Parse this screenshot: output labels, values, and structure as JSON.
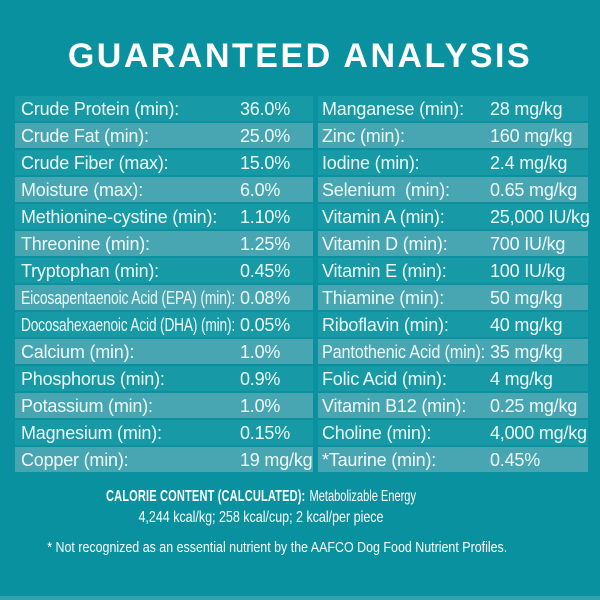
{
  "title": "GUARANTEED ANALYSIS",
  "colors": {
    "background": "#0a91a0",
    "row_dark": "#1799a6",
    "row_light": "#48a6b2",
    "text": "#eefafb",
    "title": "#ffffff",
    "bottom_edge": "#34a1ad"
  },
  "table": {
    "left_column": [
      {
        "label": "Crude Protein (min):",
        "value": "36.0%"
      },
      {
        "label": "Crude Fat (min):",
        "value": "25.0%"
      },
      {
        "label": "Crude Fiber (max):",
        "value": "15.0%"
      },
      {
        "label": "Moisture (max):",
        "value": "6.0%"
      },
      {
        "label": "Methionine-cystine (min):",
        "value": "1.10%"
      },
      {
        "label": "Threonine (min):",
        "value": "1.25%"
      },
      {
        "label": "Tryptophan (min):",
        "value": "0.45%"
      },
      {
        "label": "Eicosapentaenoic Acid (EPA) (min):",
        "value": "0.08%"
      },
      {
        "label": "Docosahexaenoic Acid (DHA) (min):",
        "value": "0.05%"
      },
      {
        "label": "Calcium (min):",
        "value": "1.0%"
      },
      {
        "label": "Phosphorus (min):",
        "value": "0.9%"
      },
      {
        "label": "Potassium (min):",
        "value": "1.0%"
      },
      {
        "label": "Magnesium (min):",
        "value": "0.15%"
      },
      {
        "label": "Copper (min):",
        "value": "19 mg/kg"
      }
    ],
    "right_column": [
      {
        "label": "Manganese (min):",
        "value": "28 mg/kg"
      },
      {
        "label": "Zinc (min):",
        "value": "160 mg/kg"
      },
      {
        "label": "Iodine (min):",
        "value": "2.4 mg/kg"
      },
      {
        "label": "Selenium  (min):",
        "value": "0.65 mg/kg"
      },
      {
        "label": "Vitamin A (min):",
        "value": "25,000 IU/kg"
      },
      {
        "label": "Vitamin D (min):",
        "value": "700 IU/kg"
      },
      {
        "label": "Vitamin E (min):",
        "value": "100 IU/kg"
      },
      {
        "label": "Thiamine (min):",
        "value": "50 mg/kg"
      },
      {
        "label": "Riboflavin (min):",
        "value": "40 mg/kg"
      },
      {
        "label": "Pantothenic Acid (min):",
        "value": "35 mg/kg"
      },
      {
        "label": "Folic Acid (min):",
        "value": "4 mg/kg"
      },
      {
        "label": "Vitamin B12 (min):",
        "value": "0.25 mg/kg"
      },
      {
        "label": "Choline (min):",
        "value": "4,000 mg/kg"
      },
      {
        "label": "*Taurine (min):",
        "value": "0.45%"
      }
    ]
  },
  "calorie_content": {
    "heading": "CALORIE CONTENT (CALCULATED):",
    "suffix": "Metabolizable Energy",
    "values_line": "4,244 kcal/kg; 258 kcal/cup; 2 kcal/per piece"
  },
  "footnote": "* Not recognized as an essential nutrient by the AAFCO Dog Food Nutrient Profiles."
}
